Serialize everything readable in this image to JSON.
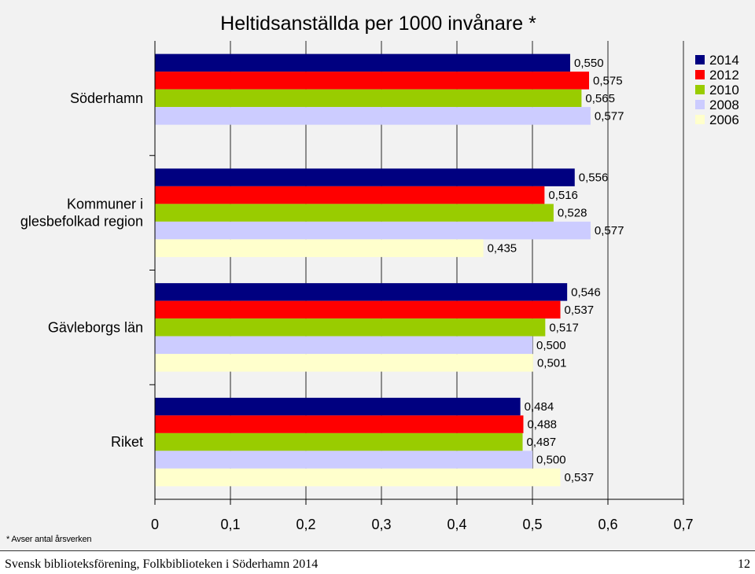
{
  "chart_data": {
    "type": "bar",
    "orientation": "horizontal",
    "title": "Heltidsanställda per 1000 invånare *",
    "categories": [
      "Söderhamn",
      "Kommuner i glesbefolkad region",
      "Gävleborgs län",
      "Riket"
    ],
    "category_lines": [
      [
        "Söderhamn"
      ],
      [
        "Kommuner i",
        "glesbefolkad region"
      ],
      [
        "Gävleborgs län"
      ],
      [
        "Riket"
      ]
    ],
    "series": [
      {
        "name": "2014",
        "color": "#000080",
        "values": [
          0.55,
          0.556,
          0.546,
          0.484
        ],
        "labels": [
          "0,550",
          "0,556",
          "0,546",
          "0,484"
        ]
      },
      {
        "name": "2012",
        "color": "#ff0000",
        "values": [
          0.575,
          0.516,
          0.537,
          0.488
        ],
        "labels": [
          "0,575",
          "0,516",
          "0,537",
          "0,488"
        ]
      },
      {
        "name": "2010",
        "color": "#99cc00",
        "values": [
          0.565,
          0.528,
          0.517,
          0.487
        ],
        "labels": [
          "0,565",
          "0,528",
          "0,517",
          "0,487"
        ]
      },
      {
        "name": "2008",
        "color": "#ccccff",
        "values": [
          0.577,
          0.577,
          0.5,
          0.5
        ],
        "labels": [
          "0,577",
          "0,577",
          "0,500",
          "0,500"
        ]
      },
      {
        "name": "2006",
        "color": "#ffffcc",
        "values": [
          null,
          0.435,
          0.501,
          0.537
        ],
        "labels": [
          null,
          "0,435",
          "0,501",
          "0,537"
        ]
      }
    ],
    "xlim": [
      0,
      0.7
    ],
    "xticks": [
      0,
      0.1,
      0.2,
      0.3,
      0.4,
      0.5,
      0.6,
      0.7
    ],
    "xtick_labels": [
      "0",
      "0,1",
      "0,2",
      "0,3",
      "0,4",
      "0,5",
      "0,6",
      "0,7"
    ],
    "grid": true,
    "legend_position": "top-right"
  },
  "note": "* Avser antal årsverken",
  "footer": {
    "source": "Svensk biblioteksförening, Folkbiblioteken i Söderhamn 2014",
    "page": "12"
  }
}
